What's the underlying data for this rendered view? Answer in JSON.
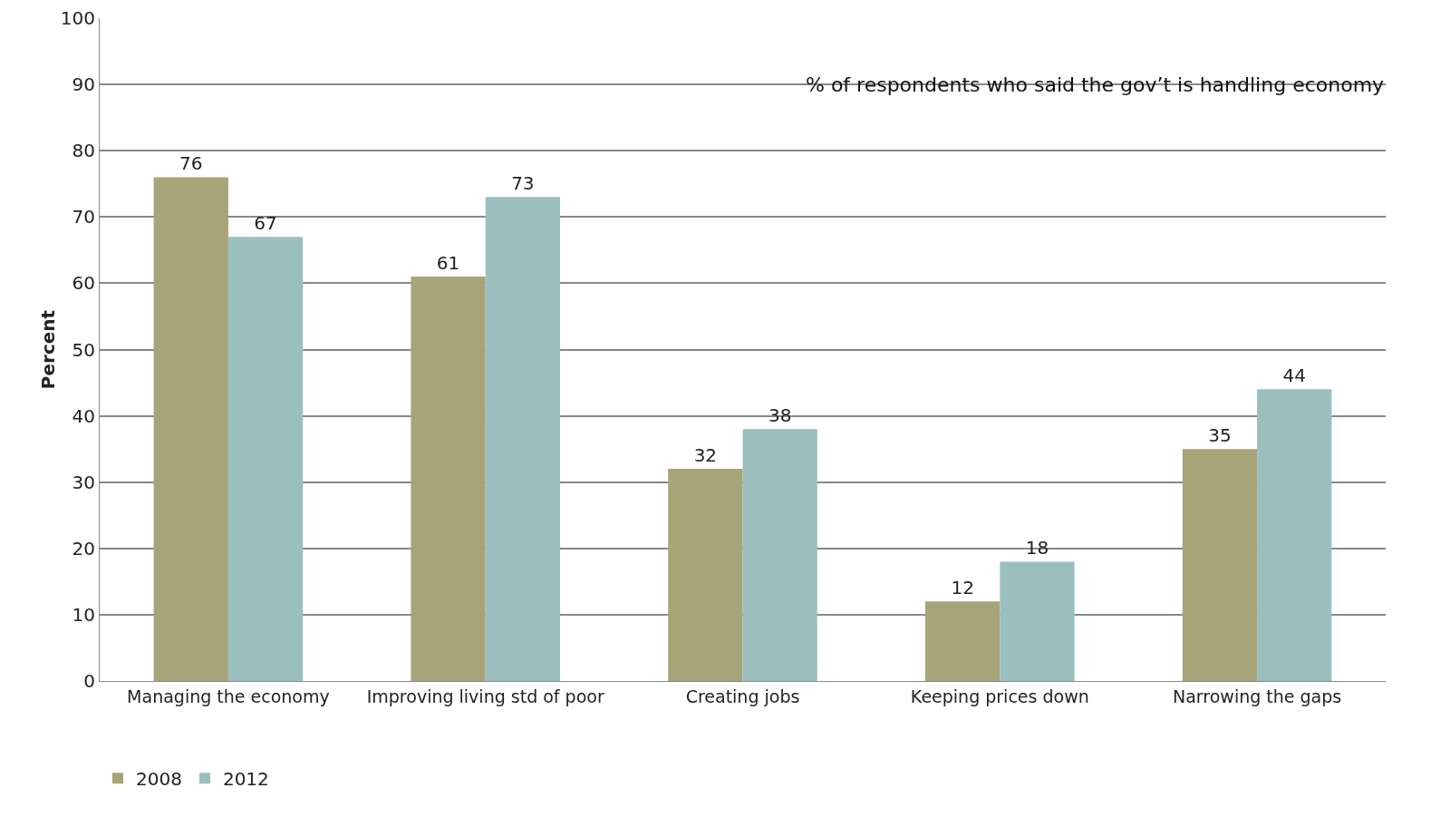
{
  "chart_data": {
    "type": "bar",
    "ylabel": "Percent",
    "annotations": [
      "% of respondents who said the gov’t is handling economy"
    ],
    "categories": [
      "Managing the economy",
      "Improving living std of poor",
      "Creating jobs",
      "Keeping prices down",
      "Narrowing the gaps"
    ],
    "series": [
      {
        "name": "2008",
        "color": "#a8a47a",
        "values": [
          76,
          61,
          32,
          12,
          35
        ]
      },
      {
        "name": "2012",
        "color": "#9bbfbf",
        "values": [
          67,
          73,
          38,
          18,
          44
        ]
      }
    ],
    "ylim": [
      0,
      100
    ],
    "yticks": [
      0,
      10,
      20,
      30,
      40,
      50,
      60,
      70,
      80,
      90,
      100
    ],
    "grid": "y",
    "data_labels": true,
    "legend": "bottom left"
  }
}
